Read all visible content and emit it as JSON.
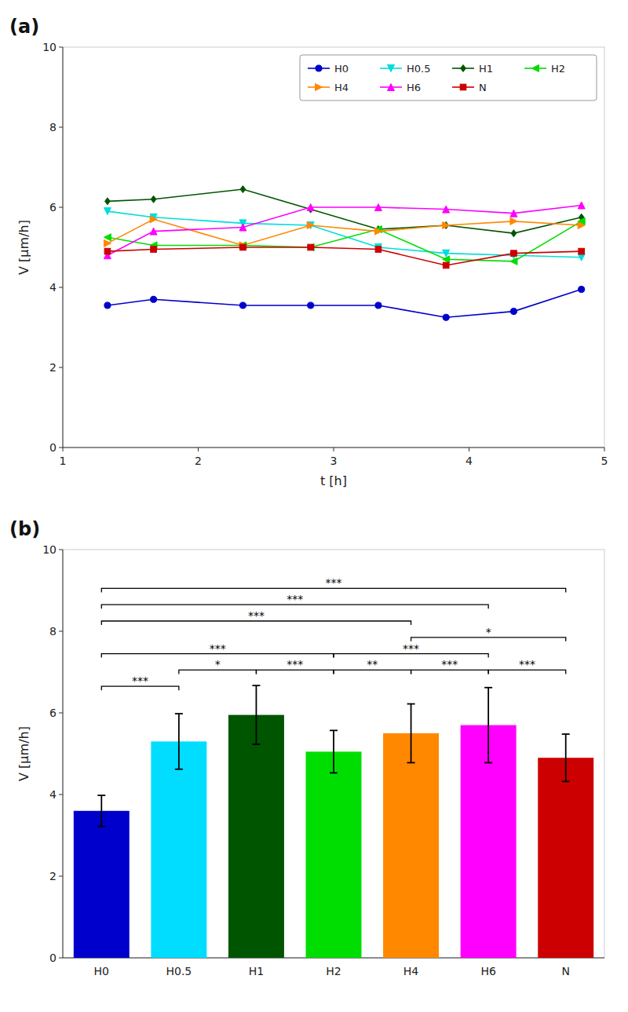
{
  "chart_data": [
    {
      "type": "line",
      "title": "(a)",
      "x": [
        1.33,
        1.67,
        2.33,
        2.83,
        3.33,
        3.83,
        4.33,
        4.83
      ],
      "series": [
        {
          "name": "H0",
          "color": "#0000CC",
          "marker": "circle",
          "values": [
            3.55,
            3.7,
            3.55,
            3.55,
            3.55,
            3.25,
            3.4,
            3.95
          ]
        },
        {
          "name": "H0.5",
          "color": "#00DDDD",
          "marker": "triangle-down",
          "values": [
            5.9,
            5.75,
            5.6,
            5.55,
            5.0,
            4.85,
            4.8,
            4.75
          ]
        },
        {
          "name": "H1",
          "color": "#005500",
          "marker": "diamond",
          "values": [
            6.15,
            6.2,
            6.45,
            5.95,
            5.45,
            5.55,
            5.35,
            5.75
          ]
        },
        {
          "name": "H2",
          "color": "#00DD00",
          "marker": "triangle-left",
          "values": [
            5.25,
            5.05,
            5.05,
            5.0,
            5.45,
            4.7,
            4.65,
            5.65
          ]
        },
        {
          "name": "H4",
          "color": "#FF8800",
          "marker": "triangle-right",
          "values": [
            5.1,
            5.7,
            5.05,
            5.55,
            5.4,
            5.55,
            5.65,
            5.55
          ]
        },
        {
          "name": "H6",
          "color": "#FF00FF",
          "marker": "triangle-up",
          "values": [
            4.8,
            5.4,
            5.5,
            6.0,
            6.0,
            5.95,
            5.85,
            6.05
          ]
        },
        {
          "name": "N",
          "color": "#CC0000",
          "marker": "square",
          "values": [
            4.9,
            4.95,
            5.0,
            5.0,
            4.95,
            4.55,
            4.85,
            4.9
          ]
        }
      ],
      "xlim": [
        1,
        5
      ],
      "ylim": [
        0,
        10
      ],
      "xticks": [
        1,
        2,
        3,
        4,
        5
      ],
      "yticks": [
        0,
        2,
        4,
        6,
        8,
        10
      ],
      "xlabel": "t [h]",
      "ylabel": "V [μm/h]",
      "legend": "upper right"
    },
    {
      "type": "bar",
      "title": "(b)",
      "categories": [
        "H0",
        "H0.5",
        "H1",
        "H2",
        "H4",
        "H6",
        "N"
      ],
      "values": [
        3.6,
        5.3,
        5.95,
        5.05,
        5.5,
        5.7,
        4.9
      ],
      "errors": [
        0.38,
        0.68,
        0.72,
        0.52,
        0.72,
        0.92,
        0.58
      ],
      "colors": [
        "#0000CC",
        "#00DDFF",
        "#005500",
        "#00DD00",
        "#FF8800",
        "#FF00FF",
        "#CC0000"
      ],
      "ylim": [
        0,
        10
      ],
      "yticks": [
        0,
        2,
        4,
        6,
        8,
        10
      ],
      "ylabel": "V [μm/h]",
      "annotations": [
        {
          "from": "H0",
          "to": "H0.5",
          "y": 6.65,
          "label": "***"
        },
        {
          "from": "H0.5",
          "to": "H1",
          "y": 7.05,
          "label": "*"
        },
        {
          "from": "H1",
          "to": "H2",
          "y": 7.05,
          "label": "***"
        },
        {
          "from": "H0",
          "to": "H2",
          "y": 7.45,
          "label": "***"
        },
        {
          "from": "H2",
          "to": "H4",
          "y": 7.05,
          "label": "**"
        },
        {
          "from": "H2",
          "to": "H6",
          "y": 7.45,
          "label": "***"
        },
        {
          "from": "H4",
          "to": "H6",
          "y": 7.05,
          "label": "***"
        },
        {
          "from": "H4",
          "to": "N",
          "y": 7.85,
          "label": "*"
        },
        {
          "from": "H6",
          "to": "N",
          "y": 7.05,
          "label": "***"
        },
        {
          "from": "H0",
          "to": "H4",
          "y": 8.25,
          "label": "***"
        },
        {
          "from": "H0",
          "to": "H6",
          "y": 8.65,
          "label": "***"
        },
        {
          "from": "H0",
          "to": "N",
          "y": 9.05,
          "label": "***"
        }
      ]
    }
  ]
}
